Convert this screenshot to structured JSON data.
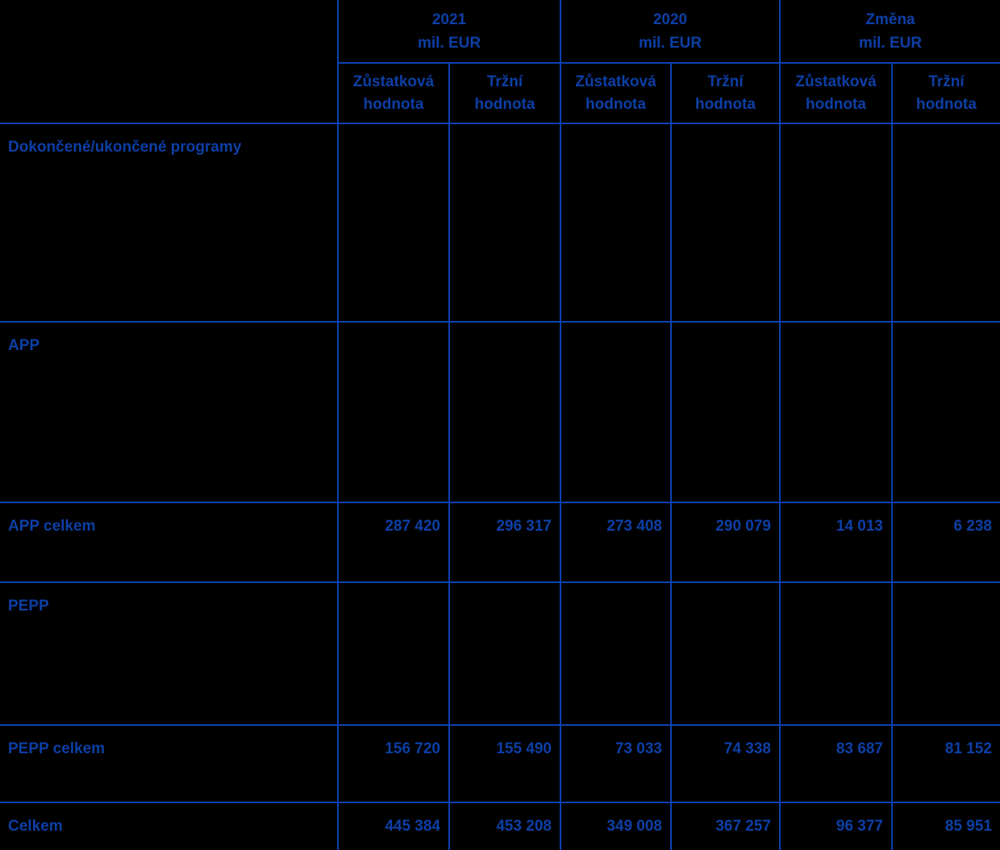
{
  "colors": {
    "background": "#000000",
    "text": "#0d3fa6",
    "grid": "#0b42b4"
  },
  "table": {
    "column_groups": [
      {
        "title": "2021",
        "subtitle": "mil. EUR"
      },
      {
        "title": "2020",
        "subtitle": "mil. EUR"
      },
      {
        "title": "Změna",
        "subtitle": "mil. EUR"
      }
    ],
    "sub_headers": [
      "Zůstatková hodnota",
      "Tržní hodnota",
      "Zůstatková hodnota",
      "Tržní hodnota",
      "Zůstatková hodnota",
      "Tržní hodnota"
    ],
    "rows": [
      {
        "label": "Dokončené/ukončené programy",
        "type": "section",
        "values": [
          "",
          "",
          "",
          "",
          "",
          ""
        ]
      },
      {
        "label": "APP",
        "type": "section",
        "values": [
          "",
          "",
          "",
          "",
          "",
          ""
        ]
      },
      {
        "label": "APP celkem",
        "type": "subtotal",
        "values": [
          "287 420",
          "296 317",
          "273 408",
          "290 079",
          "14 013",
          "6 238"
        ]
      },
      {
        "label": "PEPP",
        "type": "section",
        "values": [
          "",
          "",
          "",
          "",
          "",
          ""
        ]
      },
      {
        "label": "PEPP celkem",
        "type": "subtotal",
        "values": [
          "156 720",
          "155 490",
          "73 033",
          "74 338",
          "83 687",
          "81 152"
        ]
      },
      {
        "label": "Celkem",
        "type": "total",
        "values": [
          "445 384",
          "453 208",
          "349 008",
          "367 257",
          "96 377",
          "85 951"
        ]
      }
    ]
  }
}
